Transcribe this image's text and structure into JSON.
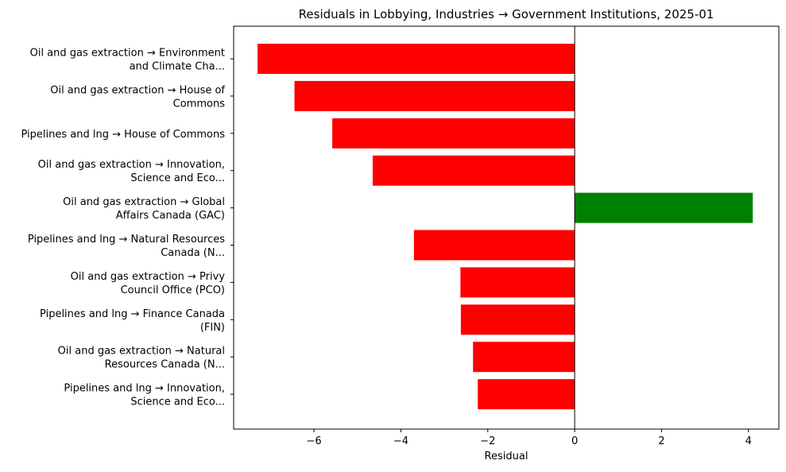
{
  "chart_data": {
    "type": "bar",
    "orientation": "horizontal",
    "title": "Residuals in Lobbying, Industries → Government Institutions, 2025-01",
    "xlabel": "Residual",
    "ylabel": "",
    "xlim": [
      -7.85,
      4.7
    ],
    "xticks": [
      -6,
      -4,
      -2,
      0,
      2,
      4
    ],
    "xtick_labels": [
      "−6",
      "−4",
      "−2",
      "0",
      "2",
      "4"
    ],
    "grid": false,
    "legend": "none",
    "colors": {
      "positive": "#008000",
      "negative": "#ff0000",
      "zero_line": "#000000"
    },
    "categories": [
      [
        "Oil and gas extraction → Environment",
        "and Climate Cha..."
      ],
      [
        "Oil and gas extraction → House of",
        "Commons"
      ],
      [
        "Pipelines and lng → House of Commons"
      ],
      [
        "Oil and gas extraction → Innovation,",
        "Science and Eco..."
      ],
      [
        "Oil and gas extraction → Global",
        "Affairs Canada (GAC)"
      ],
      [
        "Pipelines and lng → Natural Resources",
        "Canada (N..."
      ],
      [
        "Oil and gas extraction → Privy",
        "Council Office (PCO)"
      ],
      [
        "Pipelines and lng → Finance Canada",
        "(FIN)"
      ],
      [
        "Oil and gas extraction → Natural",
        "Resources Canada (N..."
      ],
      [
        "Pipelines and lng → Innovation,",
        "Science and Eco..."
      ]
    ],
    "values": [
      -7.3,
      -6.45,
      -5.58,
      -4.65,
      4.1,
      -3.7,
      -2.63,
      -2.62,
      -2.34,
      -2.23
    ]
  }
}
